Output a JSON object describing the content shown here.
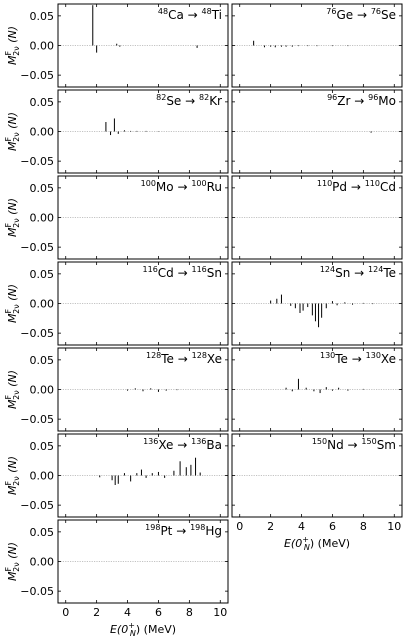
{
  "chart_data": {
    "type": "bar",
    "y_axis_label": {
      "base": "M",
      "sup": "F",
      "sub": "2ν",
      "suffix": "(N)"
    },
    "x_axis_label": {
      "prefix": "E(0",
      "sup": "+",
      "sub": "N",
      "suffix": ") (MeV)"
    },
    "xlim": [
      -0.5,
      10.5
    ],
    "ylim": [
      -0.07,
      0.07
    ],
    "x_ticks": [
      0,
      2,
      4,
      6,
      8,
      10
    ],
    "y_ticks": [
      0.05,
      0.0,
      -0.05
    ],
    "y_tick_labels": [
      "0.05",
      "0.00",
      "−0.05"
    ],
    "panels": [
      {
        "reaction": {
          "a1": "48",
          "s1": "Ca",
          "a2": "48",
          "s2": "Ti"
        },
        "points": [
          [
            1.75,
            0.068
          ],
          [
            2.0,
            -0.012
          ],
          [
            3.3,
            0.003
          ],
          [
            3.5,
            -0.002
          ],
          [
            8.5,
            -0.004
          ]
        ]
      },
      {
        "reaction": {
          "a1": "76",
          "s1": "Ge",
          "a2": "76",
          "s2": "Se"
        },
        "points": [
          [
            0.9,
            0.008
          ],
          [
            1.6,
            -0.003
          ],
          [
            2.0,
            -0.002
          ],
          [
            2.3,
            -0.003
          ],
          [
            2.7,
            -0.002
          ],
          [
            3.0,
            -0.002
          ],
          [
            3.4,
            -0.002
          ],
          [
            3.8,
            -0.001
          ],
          [
            4.4,
            -0.001
          ],
          [
            5.0,
            -0.001
          ],
          [
            6.0,
            -0.001
          ],
          [
            7.0,
            -0.001
          ]
        ]
      },
      {
        "reaction": {
          "a1": "82",
          "s1": "Se",
          "a2": "82",
          "s2": "Kr"
        },
        "points": [
          [
            2.6,
            0.016
          ],
          [
            2.9,
            -0.006
          ],
          [
            3.15,
            0.022
          ],
          [
            3.4,
            -0.004
          ],
          [
            3.8,
            0.002
          ],
          [
            4.2,
            0.001
          ],
          [
            4.6,
            0.001
          ],
          [
            5.2,
            0.001
          ],
          [
            6.0,
            0.0005
          ]
        ]
      },
      {
        "reaction": {
          "a1": "96",
          "s1": "Zr",
          "a2": "96",
          "s2": "Mo"
        },
        "points": [
          [
            8.5,
            -0.002
          ]
        ]
      },
      {
        "reaction": {
          "a1": "100",
          "s1": "Mo",
          "a2": "100",
          "s2": "Ru"
        },
        "points": []
      },
      {
        "reaction": {
          "a1": "110",
          "s1": "Pd",
          "a2": "110",
          "s2": "Cd"
        },
        "points": []
      },
      {
        "reaction": {
          "a1": "116",
          "s1": "Cd",
          "a2": "116",
          "s2": "Sn"
        },
        "points": []
      },
      {
        "reaction": {
          "a1": "124",
          "s1": "Sn",
          "a2": "124",
          "s2": "Te"
        },
        "points": [
          [
            2.0,
            0.005
          ],
          [
            2.4,
            0.008
          ],
          [
            2.7,
            0.015
          ],
          [
            3.3,
            -0.004
          ],
          [
            3.6,
            -0.008
          ],
          [
            3.9,
            -0.016
          ],
          [
            4.1,
            -0.012
          ],
          [
            4.4,
            -0.006
          ],
          [
            4.7,
            -0.02
          ],
          [
            4.9,
            -0.03
          ],
          [
            5.1,
            -0.04
          ],
          [
            5.3,
            -0.024
          ],
          [
            5.6,
            -0.008
          ],
          [
            6.0,
            0.004
          ],
          [
            6.3,
            -0.003
          ],
          [
            6.8,
            0.002
          ],
          [
            7.3,
            -0.002
          ],
          [
            8.0,
            0.001
          ],
          [
            8.6,
            -0.001
          ]
        ]
      },
      {
        "reaction": {
          "a1": "128",
          "s1": "Te",
          "a2": "128",
          "s2": "Xe"
        },
        "points": [
          [
            4.0,
            -0.002
          ],
          [
            4.5,
            0.002
          ],
          [
            5.0,
            -0.003
          ],
          [
            5.5,
            0.002
          ],
          [
            6.0,
            -0.004
          ],
          [
            6.5,
            -0.002
          ],
          [
            7.2,
            -0.001
          ]
        ]
      },
      {
        "reaction": {
          "a1": "130",
          "s1": "Te",
          "a2": "130",
          "s2": "Xe"
        },
        "points": [
          [
            3.0,
            0.003
          ],
          [
            3.4,
            -0.003
          ],
          [
            3.8,
            0.018
          ],
          [
            4.3,
            0.003
          ],
          [
            4.8,
            -0.003
          ],
          [
            5.2,
            -0.006
          ],
          [
            5.6,
            0.004
          ],
          [
            6.0,
            -0.002
          ],
          [
            6.4,
            0.003
          ],
          [
            7.0,
            -0.002
          ],
          [
            8.0,
            0.001
          ]
        ]
      },
      {
        "reaction": {
          "a1": "136",
          "s1": "Xe",
          "a2": "136",
          "s2": "Ba"
        },
        "points": [
          [
            2.2,
            -0.003
          ],
          [
            3.0,
            -0.008
          ],
          [
            3.2,
            -0.016
          ],
          [
            3.4,
            -0.014
          ],
          [
            3.8,
            0.004
          ],
          [
            4.2,
            -0.01
          ],
          [
            4.6,
            0.004
          ],
          [
            4.9,
            0.01
          ],
          [
            5.2,
            -0.004
          ],
          [
            5.6,
            0.004
          ],
          [
            6.0,
            0.006
          ],
          [
            6.4,
            -0.004
          ],
          [
            7.0,
            0.008
          ],
          [
            7.4,
            0.024
          ],
          [
            7.8,
            0.014
          ],
          [
            8.1,
            0.018
          ],
          [
            8.4,
            0.03
          ],
          [
            8.7,
            0.005
          ]
        ]
      },
      {
        "reaction": {
          "a1": "150",
          "s1": "Nd",
          "a2": "150",
          "s2": "Sm"
        },
        "points": []
      },
      {
        "reaction": {
          "a1": "198",
          "s1": "Pt",
          "a2": "198",
          "s2": "Hg"
        },
        "points": []
      }
    ]
  }
}
